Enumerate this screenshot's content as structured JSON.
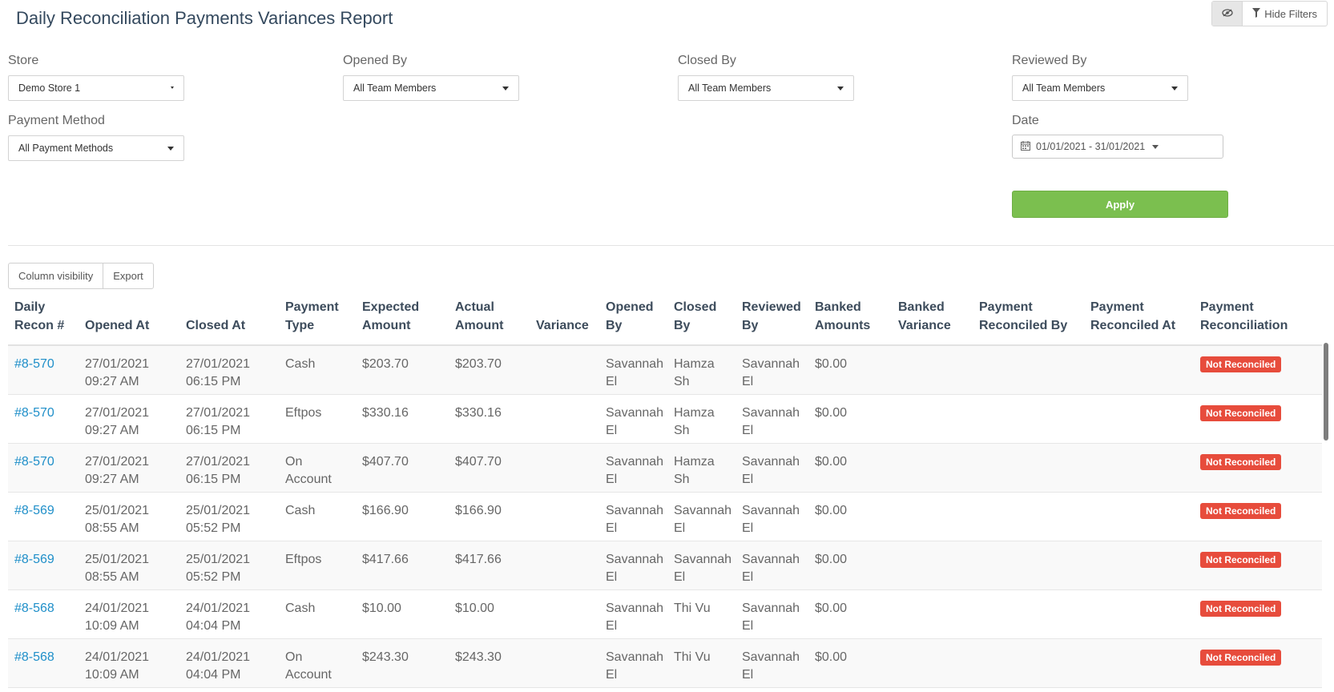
{
  "page": {
    "title": "Daily Reconciliation Payments Variances Report",
    "hide_filters_label": "Hide Filters"
  },
  "filters": {
    "store": {
      "label": "Store",
      "value": "Demo Store 1"
    },
    "opened_by": {
      "label": "Opened By",
      "value": "All Team Members"
    },
    "closed_by": {
      "label": "Closed By",
      "value": "All Team Members"
    },
    "reviewed_by": {
      "label": "Reviewed By",
      "value": "All Team Members"
    },
    "payment_method": {
      "label": "Payment Method",
      "value": "All Payment Methods"
    },
    "date": {
      "label": "Date",
      "value": "01/01/2021 - 31/01/2021"
    },
    "apply_label": "Apply"
  },
  "toolbar": {
    "column_visibility_label": "Column visibility",
    "export_label": "Export"
  },
  "table": {
    "columns": [
      [
        "Daily",
        "Recon #"
      ],
      [
        "",
        "Opened At"
      ],
      [
        "",
        "Closed At"
      ],
      [
        "Payment",
        "Type"
      ],
      [
        "Expected",
        "Amount"
      ],
      [
        "Actual",
        "Amount"
      ],
      [
        "",
        "Variance"
      ],
      [
        "Opened",
        "By"
      ],
      [
        "Closed",
        "By"
      ],
      [
        "Reviewed",
        "By"
      ],
      [
        "Banked",
        "Amounts"
      ],
      [
        "Banked",
        "Variance"
      ],
      [
        "Payment",
        "Reconciled By"
      ],
      [
        "Payment",
        "Reconciled At"
      ],
      [
        "Payment",
        "Reconciliation"
      ]
    ],
    "rows": [
      {
        "recon": "#8-570",
        "opened": [
          "27/01/2021",
          "09:27 AM"
        ],
        "closed": [
          "27/01/2021",
          "06:15 PM"
        ],
        "type": [
          "Cash",
          ""
        ],
        "expected": "$203.70",
        "actual": "$203.70",
        "variance": "",
        "opened_by": [
          "Savannah",
          "El"
        ],
        "closed_by": [
          "Hamza",
          "Sh"
        ],
        "reviewed_by": [
          "Savannah",
          "El"
        ],
        "banked": "$0.00",
        "banked_variance": "",
        "reconciled_by": "",
        "reconciled_at": "",
        "status": "Not Reconciled"
      },
      {
        "recon": "#8-570",
        "opened": [
          "27/01/2021",
          "09:27 AM"
        ],
        "closed": [
          "27/01/2021",
          "06:15 PM"
        ],
        "type": [
          "Eftpos",
          ""
        ],
        "expected": "$330.16",
        "actual": "$330.16",
        "variance": "",
        "opened_by": [
          "Savannah",
          "El"
        ],
        "closed_by": [
          "Hamza",
          "Sh"
        ],
        "reviewed_by": [
          "Savannah",
          "El"
        ],
        "banked": "$0.00",
        "banked_variance": "",
        "reconciled_by": "",
        "reconciled_at": "",
        "status": "Not Reconciled"
      },
      {
        "recon": "#8-570",
        "opened": [
          "27/01/2021",
          "09:27 AM"
        ],
        "closed": [
          "27/01/2021",
          "06:15 PM"
        ],
        "type": [
          "On",
          "Account"
        ],
        "expected": "$407.70",
        "actual": "$407.70",
        "variance": "",
        "opened_by": [
          "Savannah",
          "El"
        ],
        "closed_by": [
          "Hamza",
          "Sh"
        ],
        "reviewed_by": [
          "Savannah",
          "El"
        ],
        "banked": "$0.00",
        "banked_variance": "",
        "reconciled_by": "",
        "reconciled_at": "",
        "status": "Not Reconciled"
      },
      {
        "recon": "#8-569",
        "opened": [
          "25/01/2021",
          "08:55 AM"
        ],
        "closed": [
          "25/01/2021",
          "05:52 PM"
        ],
        "type": [
          "Cash",
          ""
        ],
        "expected": "$166.90",
        "actual": "$166.90",
        "variance": "",
        "opened_by": [
          "Savannah",
          "El"
        ],
        "closed_by": [
          "Savannah",
          "El"
        ],
        "reviewed_by": [
          "Savannah",
          "El"
        ],
        "banked": "$0.00",
        "banked_variance": "",
        "reconciled_by": "",
        "reconciled_at": "",
        "status": "Not Reconciled"
      },
      {
        "recon": "#8-569",
        "opened": [
          "25/01/2021",
          "08:55 AM"
        ],
        "closed": [
          "25/01/2021",
          "05:52 PM"
        ],
        "type": [
          "Eftpos",
          ""
        ],
        "expected": "$417.66",
        "actual": "$417.66",
        "variance": "",
        "opened_by": [
          "Savannah",
          "El"
        ],
        "closed_by": [
          "Savannah",
          "El"
        ],
        "reviewed_by": [
          "Savannah",
          "El"
        ],
        "banked": "$0.00",
        "banked_variance": "",
        "reconciled_by": "",
        "reconciled_at": "",
        "status": "Not Reconciled"
      },
      {
        "recon": "#8-568",
        "opened": [
          "24/01/2021",
          "10:09 AM"
        ],
        "closed": [
          "24/01/2021",
          "04:04 PM"
        ],
        "type": [
          "Cash",
          ""
        ],
        "expected": "$10.00",
        "actual": "$10.00",
        "variance": "",
        "opened_by": [
          "Savannah",
          "El"
        ],
        "closed_by": [
          "Thi Vu",
          ""
        ],
        "reviewed_by": [
          "Savannah",
          "El"
        ],
        "banked": "$0.00",
        "banked_variance": "",
        "reconciled_by": "",
        "reconciled_at": "",
        "status": "Not Reconciled"
      },
      {
        "recon": "#8-568",
        "opened": [
          "24/01/2021",
          "10:09 AM"
        ],
        "closed": [
          "24/01/2021",
          "04:04 PM"
        ],
        "type": [
          "On",
          "Account"
        ],
        "expected": "$243.30",
        "actual": "$243.30",
        "variance": "",
        "opened_by": [
          "Savannah",
          "El"
        ],
        "closed_by": [
          "Thi Vu",
          ""
        ],
        "reviewed_by": [
          "Savannah",
          "El"
        ],
        "banked": "$0.00",
        "banked_variance": "",
        "reconciled_by": "",
        "reconciled_at": "",
        "status": "Not Reconciled"
      }
    ]
  }
}
